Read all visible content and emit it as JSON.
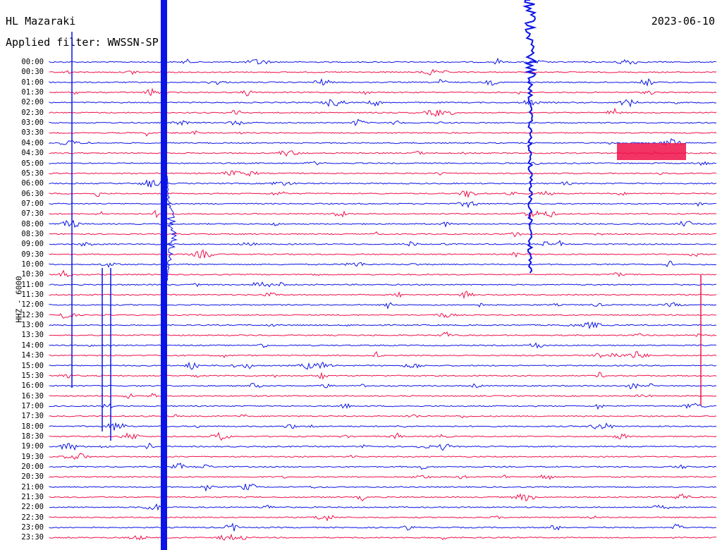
{
  "header": {
    "station": "HL Mazaraki",
    "filter": "Applied filter: WWSSN-SP",
    "date": "2023-06-10"
  },
  "channel_label": "HHZ - 6000",
  "colors": {
    "blue": "#0a14e6",
    "red": "#f0104a"
  },
  "rows": [
    "00:00",
    "00:30",
    "01:00",
    "01:30",
    "02:00",
    "02:30",
    "03:00",
    "03:30",
    "04:00",
    "04:30",
    "05:00",
    "05:30",
    "06:00",
    "06:30",
    "07:00",
    "07:30",
    "08:00",
    "08:30",
    "09:00",
    "09:30",
    "10:00",
    "10:30",
    "11:00",
    "11:30",
    "12:00",
    "12:30",
    "13:00",
    "13:30",
    "14:00",
    "14:30",
    "15:00",
    "15:30",
    "16:00",
    "16:30",
    "17:00",
    "17:30",
    "18:00",
    "18:30",
    "19:00",
    "19:30",
    "20:00",
    "20:30",
    "21:00",
    "21:30",
    "22:00",
    "22:30",
    "23:00",
    "23:30"
  ]
}
